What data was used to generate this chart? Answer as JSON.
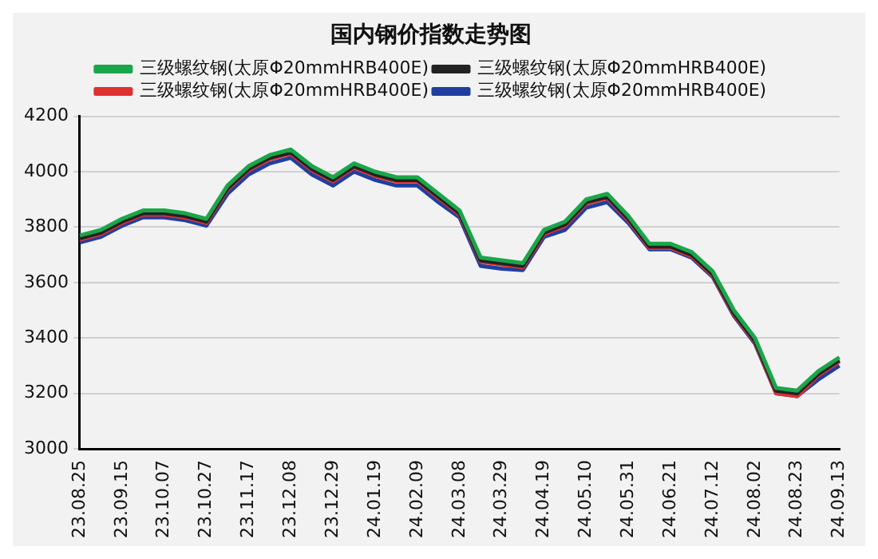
{
  "chart_data": {
    "type": "line",
    "title": "国内钢价指数走势图",
    "categories": [
      "23.08.25",
      null,
      "23.09.15",
      null,
      "23.10.07",
      null,
      "23.10.27",
      null,
      "23.11.17",
      null,
      "23.12.08",
      null,
      "23.12.29",
      null,
      "24.01.19",
      null,
      "24.02.09",
      null,
      "24.03.08",
      null,
      "24.03.29",
      null,
      "24.04.19",
      null,
      "24.05.10",
      null,
      "24.05.31",
      null,
      "24.06.21",
      null,
      "24.07.12",
      null,
      "24.08.02",
      null,
      "24.08.23",
      null,
      "24.09.13"
    ],
    "series": [
      {
        "name": "三级螺纹钢(太原Φ20mmHRB400E)",
        "color": "#1aa64a",
        "values": [
          3770,
          3790,
          3830,
          3860,
          3860,
          3850,
          3830,
          3950,
          4020,
          4060,
          4080,
          4020,
          3980,
          4030,
          4000,
          3980,
          3980,
          3920,
          3860,
          3690,
          3680,
          3670,
          3790,
          3820,
          3900,
          3920,
          3840,
          3740,
          3740,
          3710,
          3640,
          3500,
          3400,
          3220,
          3210,
          3280,
          3330
        ]
      },
      {
        "name": "三级螺纹钢(太原Φ20mmHRB400E)",
        "color": "#222222",
        "values": [
          3760,
          3780,
          3820,
          3850,
          3850,
          3840,
          3820,
          3940,
          4010,
          4050,
          4070,
          4010,
          3970,
          4020,
          3990,
          3970,
          3970,
          3910,
          3850,
          3680,
          3670,
          3660,
          3780,
          3810,
          3890,
          3910,
          3830,
          3730,
          3730,
          3700,
          3630,
          3490,
          3390,
          3210,
          3200,
          3270,
          3320
        ]
      },
      {
        "name": "三级螺纹钢(太原Φ20mmHRB400E)",
        "color": "#e03030",
        "values": [
          3755,
          3775,
          3815,
          3845,
          3845,
          3835,
          3815,
          3935,
          4005,
          4045,
          4065,
          4005,
          3965,
          4015,
          3985,
          3965,
          3965,
          3905,
          3845,
          3675,
          3665,
          3655,
          3775,
          3805,
          3885,
          3905,
          3825,
          3725,
          3725,
          3695,
          3625,
          3485,
          3385,
          3200,
          3190,
          3265,
          3315
        ]
      },
      {
        "name": "三级螺纹钢(太原Φ20mmHRB400E)",
        "color": "#1f3fa0",
        "values": [
          3745,
          3765,
          3805,
          3835,
          3835,
          3825,
          3805,
          3920,
          3990,
          4030,
          4050,
          3990,
          3950,
          4000,
          3970,
          3950,
          3950,
          3890,
          3835,
          3660,
          3650,
          3645,
          3765,
          3790,
          3870,
          3890,
          3815,
          3720,
          3720,
          3690,
          3620,
          3480,
          3380,
          3200,
          3190,
          3250,
          3300
        ]
      }
    ],
    "ylim": [
      3000,
      4200
    ],
    "yticks": [
      3000,
      3200,
      3400,
      3600,
      3800,
      4000,
      4200
    ],
    "grid": "y",
    "legend": "top",
    "marker": "none",
    "line_style": "solid"
  }
}
